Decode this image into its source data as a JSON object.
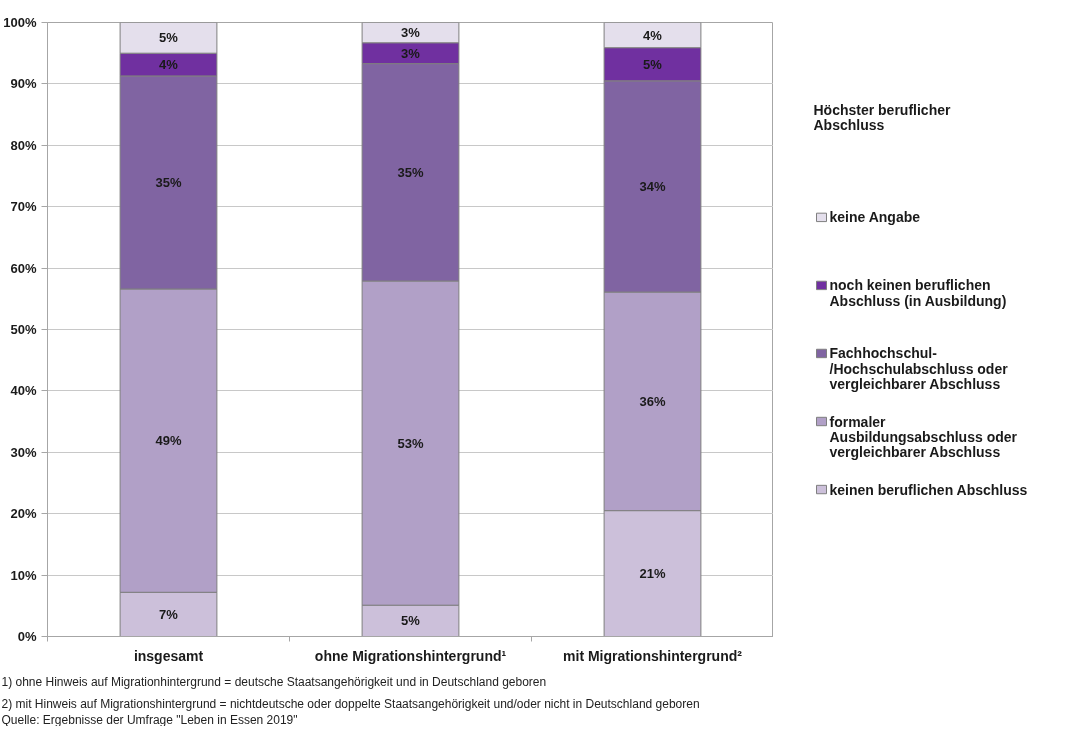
{
  "chart_data": {
    "type": "bar",
    "stacked": true,
    "categories": [
      "insgesamt",
      "ohne Migrationshintergrund¹",
      "mit Migrationshintergrund²"
    ],
    "series": [
      {
        "name": "keinen beruflichen Abschluss",
        "color": "#ccc0da",
        "values": [
          7.2,
          5.1,
          20.5
        ],
        "value_labels": [
          "7%",
          "5%",
          "21%"
        ]
      },
      {
        "name": "formaler Ausbildungsabschluss oder vergleichbarer Abschluss",
        "color": "#b1a0c7",
        "values": [
          49.4,
          52.8,
          35.6
        ],
        "value_labels": [
          "49%",
          "53%",
          "36%"
        ]
      },
      {
        "name": "Fachhochschul-/Hochschulabschluss oder vergleichbarer Abschluss",
        "color": "#8064a2",
        "values": [
          34.7,
          35.4,
          34.4
        ],
        "value_labels": [
          "35%",
          "35%",
          "34%"
        ]
      },
      {
        "name": "noch keinen beruflichen Abschluss (in Ausbildung)",
        "color": "#7030a0",
        "values": [
          3.7,
          3.4,
          5.4
        ],
        "value_labels": [
          "4%",
          "3%",
          "5%"
        ]
      },
      {
        "name": "keine Angabe",
        "color": "#e4dfec",
        "values": [
          5.0,
          3.3,
          4.1
        ],
        "value_labels": [
          "5%",
          "3%",
          "4%"
        ]
      }
    ],
    "ylim": [
      0,
      100
    ],
    "yticks": [
      {
        "value": 0,
        "label": "0%"
      },
      {
        "value": 10,
        "label": "10%"
      },
      {
        "value": 20,
        "label": "20%"
      },
      {
        "value": 30,
        "label": "30%"
      },
      {
        "value": 40,
        "label": "40%"
      },
      {
        "value": 50,
        "label": "50%"
      },
      {
        "value": 60,
        "label": "60%"
      },
      {
        "value": 70,
        "label": "70%"
      },
      {
        "value": 80,
        "label": "80%"
      },
      {
        "value": 90,
        "label": "90%"
      },
      {
        "value": 100,
        "label": "100%"
      }
    ],
    "grid": "y",
    "legend": "right",
    "legend_title": "Höchster beruflicher Abschluss",
    "annotations": [
      "1) ohne Hinweis auf Migrationhintergrund = deutsche Staatsangehörigkeit und in Deutschland geboren",
      "2) mit Hinweis auf Migrationshintergrund = nichtdeutsche oder doppelte Staatsangehörigkeit und/oder nicht in Deutschland geboren",
      "Quelle: Ergebnisse der Umfrage \"Leben in Essen 2019\""
    ]
  }
}
